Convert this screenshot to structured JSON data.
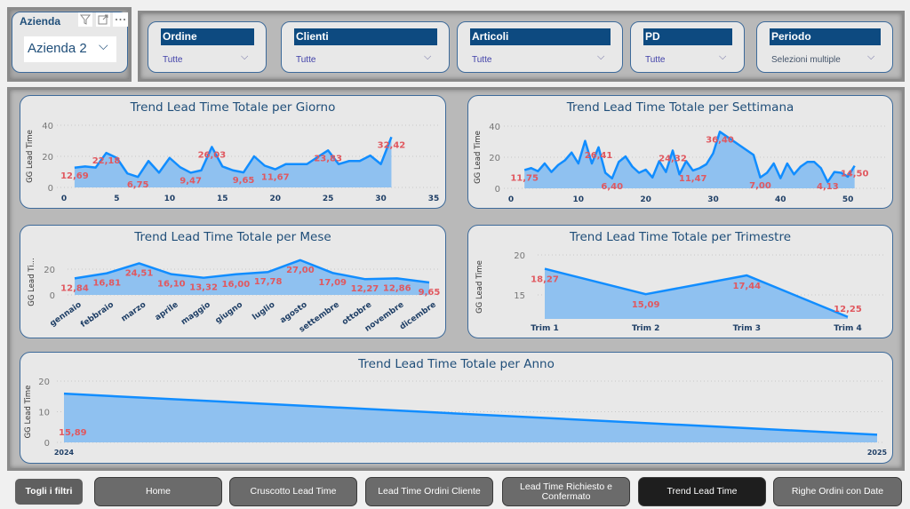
{
  "company_slicer": {
    "title": "Azienda",
    "value": "Azienda 2"
  },
  "filters": [
    {
      "label": "Ordine",
      "value": "Tutte"
    },
    {
      "label": "Clienti",
      "value": "Tutte"
    },
    {
      "label": "Articoli",
      "value": "Tutte"
    },
    {
      "label": "PD",
      "value": "Tutte"
    },
    {
      "label": "Periodo",
      "value": "Selezioni multiple"
    }
  ],
  "nav": {
    "clear_filters": "Togli i filtri",
    "buttons": [
      "Home",
      "Cruscotto Lead Time",
      "Lead Time Ordini Cliente",
      "Lead Time Richiesto e Confermato",
      "Trend Lead Time",
      "Righe Ordini con Date"
    ],
    "active": "Trend Lead Time"
  },
  "colors": {
    "line": "#118dff",
    "area": "#8fc1f0",
    "label": "#e0585f",
    "header": "#0d4a80",
    "title": "#1f4e79"
  },
  "chart_data": [
    {
      "type": "area",
      "title": "Trend Lead Time Totale per Giorno",
      "ylabel": "GG Lead Time",
      "xlim": [
        0,
        35
      ],
      "ylim": [
        0,
        40
      ],
      "xticks": [
        0,
        5,
        10,
        15,
        20,
        25,
        30,
        35
      ],
      "yticks": [
        0,
        20,
        40
      ],
      "grid": true,
      "x": [
        1,
        2,
        3,
        4,
        5,
        6,
        7,
        8,
        9,
        10,
        11,
        12,
        13,
        14,
        15,
        16,
        17,
        18,
        19,
        20,
        21,
        22,
        23,
        24,
        25,
        26,
        27,
        28,
        29,
        30,
        31
      ],
      "values": [
        12.69,
        13.5,
        12.8,
        22.18,
        19,
        9,
        6.75,
        17,
        9.5,
        19,
        13,
        9.47,
        11,
        26.03,
        13.5,
        11,
        9.65,
        20,
        14,
        11.67,
        15,
        15,
        15,
        19.5,
        23.83,
        15,
        17,
        17,
        20.5,
        15,
        32.42
      ],
      "data_labels": [
        {
          "x": 1,
          "text": "12,69"
        },
        {
          "x": 4,
          "text": "22,18"
        },
        {
          "x": 7,
          "text": "6,75"
        },
        {
          "x": 12,
          "text": "9,47"
        },
        {
          "x": 14,
          "text": "26,03"
        },
        {
          "x": 17,
          "text": "9,65"
        },
        {
          "x": 20,
          "text": "11,67"
        },
        {
          "x": 25,
          "text": "23,83"
        },
        {
          "x": 31,
          "text": "32,42"
        }
      ]
    },
    {
      "type": "area",
      "title": "Trend Lead Time Totale per Settimana",
      "ylabel": "GG Lead Time",
      "xlim": [
        0,
        55
      ],
      "ylim": [
        0,
        40
      ],
      "xticks": [
        0,
        10,
        20,
        30,
        40,
        50
      ],
      "yticks": [
        0,
        20,
        40
      ],
      "grid": true,
      "x": [
        2,
        3,
        4,
        5,
        6,
        7,
        8,
        9,
        10,
        11,
        12,
        13,
        14,
        15,
        16,
        17,
        18,
        19,
        20,
        21,
        22,
        23,
        24,
        25,
        26,
        27,
        28,
        29,
        30,
        31,
        36,
        37,
        38,
        39,
        40,
        41,
        42,
        43,
        44,
        45,
        46,
        47,
        48,
        49,
        50,
        51
      ],
      "values": [
        11.75,
        13,
        11,
        16,
        10.5,
        15,
        18,
        23,
        16,
        30.5,
        16,
        26.41,
        10,
        6.4,
        17,
        20.5,
        14,
        10,
        12,
        7,
        17.5,
        10.5,
        24.32,
        9,
        17.5,
        11.47,
        13,
        15.5,
        22.5,
        36.4,
        21.5,
        7,
        10,
        16,
        6.5,
        16,
        9,
        14,
        17,
        17,
        13,
        4.13,
        10.5,
        10,
        7.5,
        14.5
      ],
      "data_labels": [
        {
          "x": 2,
          "text": "11,75"
        },
        {
          "x": 13,
          "text": "26,41"
        },
        {
          "x": 15,
          "text": "6,40"
        },
        {
          "x": 24,
          "text": "24,32"
        },
        {
          "x": 27,
          "text": "11,47"
        },
        {
          "x": 31,
          "text": "36,40"
        },
        {
          "x": 37,
          "text": "7,00"
        },
        {
          "x": 47,
          "text": "4,13"
        },
        {
          "x": 51,
          "text": "14,50"
        }
      ]
    },
    {
      "type": "area",
      "title": "Trend Lead Time Totale per Mese",
      "ylabel": "GG Lead Ti...",
      "ylim": [
        0,
        20
      ],
      "yticks": [
        0,
        20
      ],
      "grid": true,
      "categories": [
        "gennaio",
        "febbraio",
        "marzo",
        "aprile",
        "maggio",
        "giugno",
        "luglio",
        "agosto",
        "settembre",
        "ottobre",
        "novembre",
        "dicembre"
      ],
      "values": [
        12.84,
        16.81,
        24.51,
        16.1,
        13.32,
        16.0,
        17.78,
        27.0,
        17.09,
        12.27,
        12.86,
        9.65
      ],
      "data_labels": [
        "12,84",
        "16,81",
        "24,51",
        "16,10",
        "13,32",
        "16,00",
        "17,78",
        "27,00",
        "17,09",
        "12,27",
        "12,86",
        "9,65"
      ]
    },
    {
      "type": "area",
      "title": "Trend Lead Time Totale per Trimestre",
      "ylabel": "GG Lead Time",
      "ylim": [
        12,
        20
      ],
      "yticks": [
        15,
        20
      ],
      "grid": true,
      "categories": [
        "Trim 1",
        "Trim 2",
        "Trim 3",
        "Trim 4"
      ],
      "values": [
        18.27,
        15.09,
        17.44,
        12.25
      ],
      "data_labels": [
        "18,27",
        "15,09",
        "17,44",
        "12,25"
      ]
    },
    {
      "type": "area",
      "title": "Trend Lead Time Totale per Anno",
      "ylabel": "GG Lead Time",
      "ylim": [
        0,
        20
      ],
      "yticks": [
        0,
        10,
        20
      ],
      "grid": true,
      "categories": [
        "2024",
        "2025"
      ],
      "values": [
        15.89,
        2.5
      ],
      "data_labels": [
        "15,89",
        ""
      ]
    }
  ]
}
